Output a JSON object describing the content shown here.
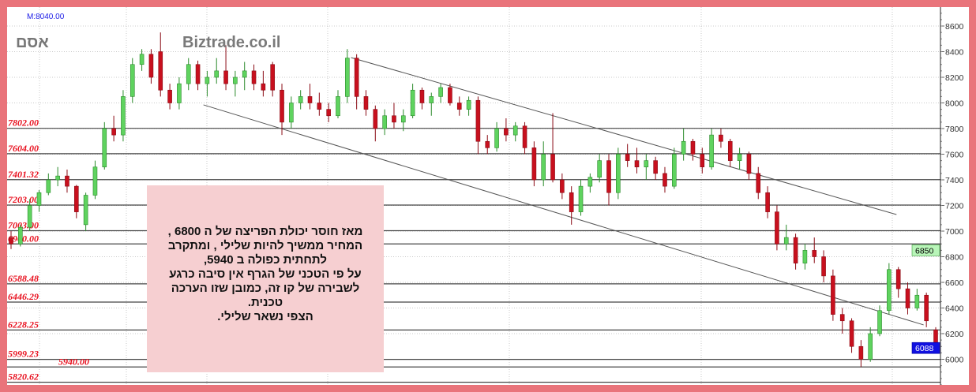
{
  "header": {
    "max_label": "M:8040.00",
    "symbol": "אסם",
    "brand": "Biztrade.co.il"
  },
  "annotation": {
    "lines": [
      "מאז  חוסר יכולת הפריצה של ה 6800 ,",
      "המחיר ממשיך להיות שלילי , ומתקרב",
      "לתחתית כפולה ב  5940,",
      "על פי הטכני של הגרף אין סיבה כרגע",
      "לשבירה של קו זה, כמובן שזו הערכה",
      "טכנית.",
      "הצפי נשאר  שלילי."
    ]
  },
  "colors": {
    "up": "#5fd35f",
    "down": "#c8101e",
    "level_label": "#e8101e",
    "border": "#e9747b",
    "note_bg": "#f6cfd1",
    "badge_current": "#1010e0",
    "badge_level": "#b8f5b8"
  },
  "chart_data": {
    "type": "candlestick",
    "title": "",
    "ylim": [
      5800,
      8700
    ],
    "yticks": [
      6000,
      6200,
      6400,
      6600,
      6800,
      7000,
      7200,
      7400,
      7600,
      7800,
      8000,
      8200,
      8400,
      8600
    ],
    "ytick_labels": [
      "6000",
      "6200",
      "6400",
      "6600",
      "6800",
      "7000",
      "7200",
      "7400",
      "7600",
      "7800",
      "8000",
      "8200",
      "8400",
      "8600"
    ],
    "grid": true,
    "levels": [
      {
        "value": 7802,
        "label": "7802.00"
      },
      {
        "value": 7604,
        "label": "7604.00"
      },
      {
        "value": 7401.32,
        "label": "7401.32"
      },
      {
        "value": 7203,
        "label": "7203.00"
      },
      {
        "value": 7003,
        "label": "7003.00"
      },
      {
        "value": 6900,
        "label": "6900.00"
      },
      {
        "value": 6588.48,
        "label": "6588.48"
      },
      {
        "value": 6446.29,
        "label": "6446.29"
      },
      {
        "value": 6228.25,
        "label": "6228.25"
      },
      {
        "value": 5999.23,
        "label": "5999.23"
      },
      {
        "value": 5940,
        "label": "5940.00"
      },
      {
        "value": 5820.62,
        "label": "5820.62"
      }
    ],
    "badges": [
      {
        "value": 6850,
        "label": "6850",
        "kind": "level"
      },
      {
        "value": 6088,
        "label": "6088",
        "kind": "current"
      }
    ],
    "trendlines": [
      {
        "from": [
          36.4,
          8354
        ],
        "to": [
          94.8,
          7129
        ]
      },
      {
        "from": [
          20.6,
          7985
        ],
        "to": [
          97.7,
          6268
        ]
      }
    ],
    "ohlc": [
      [
        6950,
        7000,
        6860,
        6900
      ],
      [
        6900,
        7050,
        6880,
        7030
      ],
      [
        7030,
        7250,
        7000,
        7200
      ],
      [
        7200,
        7320,
        7150,
        7300
      ],
      [
        7300,
        7450,
        7280,
        7400
      ],
      [
        7400,
        7500,
        7350,
        7430
      ],
      [
        7430,
        7480,
        7300,
        7350
      ],
      [
        7350,
        7360,
        7100,
        7150
      ],
      [
        7050,
        7300,
        7000,
        7280
      ],
      [
        7280,
        7550,
        7250,
        7500
      ],
      [
        7500,
        7850,
        7480,
        7800
      ],
      [
        7800,
        7900,
        7700,
        7750
      ],
      [
        7750,
        8100,
        7700,
        8050
      ],
      [
        8050,
        8350,
        8000,
        8300
      ],
      [
        8300,
        8420,
        8250,
        8380
      ],
      [
        8380,
        8420,
        8150,
        8200
      ],
      [
        8400,
        8550,
        8050,
        8100
      ],
      [
        8100,
        8150,
        7950,
        8000
      ],
      [
        8000,
        8200,
        7950,
        8150
      ],
      [
        8150,
        8350,
        8100,
        8300
      ],
      [
        8300,
        8330,
        8100,
        8150
      ],
      [
        8150,
        8250,
        8050,
        8200
      ],
      [
        8200,
        8350,
        8150,
        8250
      ],
      [
        8250,
        8450,
        8100,
        8150
      ],
      [
        8150,
        8250,
        8050,
        8200
      ],
      [
        8200,
        8320,
        8100,
        8250
      ],
      [
        8250,
        8300,
        8100,
        8150
      ],
      [
        8150,
        8250,
        8050,
        8100
      ],
      [
        8300,
        8320,
        8050,
        8100
      ],
      [
        8100,
        8150,
        7750,
        7850
      ],
      [
        7850,
        8050,
        7800,
        8000
      ],
      [
        8000,
        8100,
        7950,
        8050
      ],
      [
        8050,
        8150,
        7950,
        8000
      ],
      [
        8000,
        8080,
        7900,
        7950
      ],
      [
        7950,
        8000,
        7850,
        7900
      ],
      [
        7900,
        8100,
        7880,
        8050
      ],
      [
        8050,
        8420,
        8000,
        8350
      ],
      [
        8350,
        8380,
        7950,
        8050
      ],
      [
        8050,
        8100,
        7900,
        7950
      ],
      [
        7950,
        7980,
        7700,
        7800
      ],
      [
        7800,
        7950,
        7750,
        7900
      ],
      [
        7900,
        8000,
        7800,
        7850
      ],
      [
        7850,
        7950,
        7780,
        7900
      ],
      [
        7900,
        8150,
        7880,
        8100
      ],
      [
        8100,
        8120,
        7950,
        8000
      ],
      [
        8000,
        8080,
        7900,
        8050
      ],
      [
        8050,
        8150,
        8000,
        8120
      ],
      [
        8120,
        8150,
        7980,
        8000
      ],
      [
        8000,
        8050,
        7900,
        7950
      ],
      [
        7950,
        8050,
        7900,
        8020
      ],
      [
        8020,
        8050,
        7600,
        7700
      ],
      [
        7700,
        7750,
        7600,
        7650
      ],
      [
        7650,
        7850,
        7620,
        7800
      ],
      [
        7800,
        7880,
        7700,
        7750
      ],
      [
        7750,
        7850,
        7700,
        7820
      ],
      [
        7820,
        7850,
        7600,
        7650
      ],
      [
        7650,
        7700,
        7350,
        7400
      ],
      [
        7400,
        7700,
        7350,
        7600
      ],
      [
        7600,
        7920,
        7380,
        7400
      ],
      [
        7400,
        7450,
        7250,
        7300
      ],
      [
        7300,
        7350,
        7050,
        7150
      ],
      [
        7150,
        7400,
        7120,
        7350
      ],
      [
        7350,
        7450,
        7300,
        7420
      ],
      [
        7420,
        7600,
        7380,
        7550
      ],
      [
        7550,
        7600,
        7200,
        7300
      ],
      [
        7300,
        7650,
        7250,
        7600
      ],
      [
        7600,
        7680,
        7500,
        7550
      ],
      [
        7550,
        7650,
        7450,
        7500
      ],
      [
        7500,
        7600,
        7400,
        7550
      ],
      [
        7550,
        7580,
        7400,
        7450
      ],
      [
        7450,
        7500,
        7300,
        7350
      ],
      [
        7350,
        7650,
        7330,
        7600
      ],
      [
        7600,
        7800,
        7550,
        7700
      ],
      [
        7700,
        7720,
        7550,
        7600
      ],
      [
        7600,
        7650,
        7450,
        7500
      ],
      [
        7500,
        7800,
        7480,
        7750
      ],
      [
        7750,
        7800,
        7650,
        7700
      ],
      [
        7700,
        7720,
        7500,
        7550
      ],
      [
        7550,
        7650,
        7480,
        7600
      ],
      [
        7600,
        7620,
        7400,
        7450
      ],
      [
        7450,
        7500,
        7250,
        7300
      ],
      [
        7300,
        7350,
        7100,
        7150
      ],
      [
        7150,
        7200,
        6850,
        6900
      ],
      [
        6900,
        7050,
        6850,
        6950
      ],
      [
        6950,
        6980,
        6700,
        6750
      ],
      [
        6750,
        6900,
        6700,
        6850
      ],
      [
        6850,
        6950,
        6750,
        6800
      ],
      [
        6800,
        6850,
        6600,
        6650
      ],
      [
        6650,
        6700,
        6300,
        6350
      ],
      [
        6350,
        6400,
        6200,
        6300
      ],
      [
        6300,
        6320,
        6050,
        6100
      ],
      [
        6100,
        6150,
        5940,
        6000
      ],
      [
        6000,
        6250,
        5980,
        6200
      ],
      [
        6200,
        6420,
        6180,
        6380
      ],
      [
        6380,
        6750,
        6350,
        6700
      ],
      [
        6700,
        6720,
        6480,
        6550
      ],
      [
        6550,
        6600,
        6350,
        6400
      ],
      [
        6400,
        6550,
        6380,
        6500
      ],
      [
        6500,
        6520,
        6250,
        6300
      ],
      [
        6230,
        6250,
        6080,
        6088
      ]
    ]
  }
}
